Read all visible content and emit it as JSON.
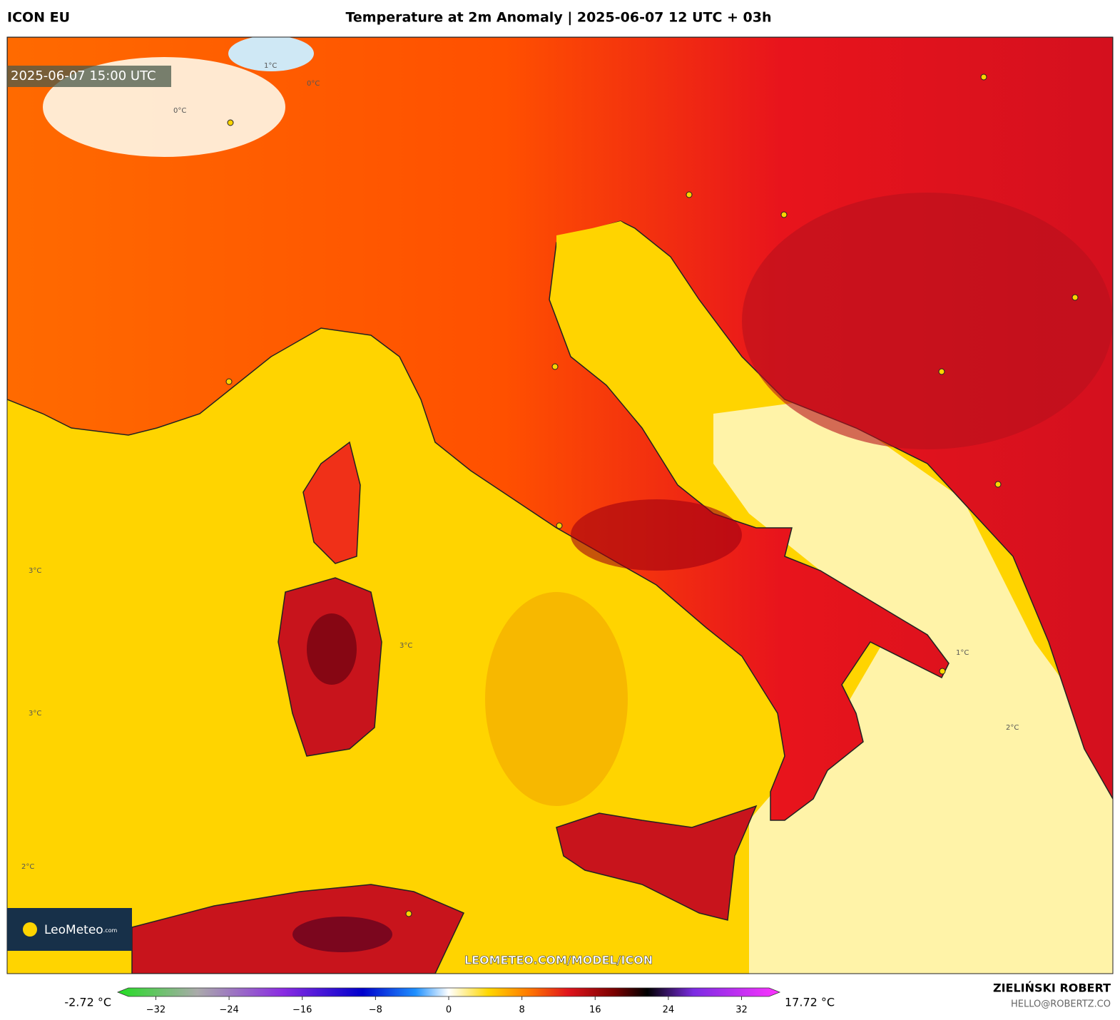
{
  "header": {
    "model": "ICON EU",
    "title": "Temperature at 2m Anomaly | 2025-06-07 12 UTC + 03h"
  },
  "map": {
    "timestamp": "2025-06-07 15:00 UTC",
    "watermark": "LEOMETEO.COM/MODEL/ICON",
    "logo": {
      "name": "LeoMeteo",
      "suffix": ".com"
    },
    "contour_labels": [
      "1°C",
      "0°C",
      "0°C",
      "3°C",
      "3°C",
      "3°C",
      "2°C",
      "2°C",
      "1°C"
    ]
  },
  "colorbar": {
    "min_label": "-2.72 °C",
    "max_label": "17.72 °C",
    "range": [
      -35,
      35
    ],
    "ticks": [
      {
        "value": -32,
        "label": "−32"
      },
      {
        "value": -24,
        "label": "−24"
      },
      {
        "value": -16,
        "label": "−16"
      },
      {
        "value": -8,
        "label": "−8"
      },
      0,
      8,
      16,
      24,
      32
    ]
  },
  "footer": {
    "author": "ZIELIŃSKI ROBERT",
    "contact": "HELLO@ROBERTZ.CO"
  }
}
